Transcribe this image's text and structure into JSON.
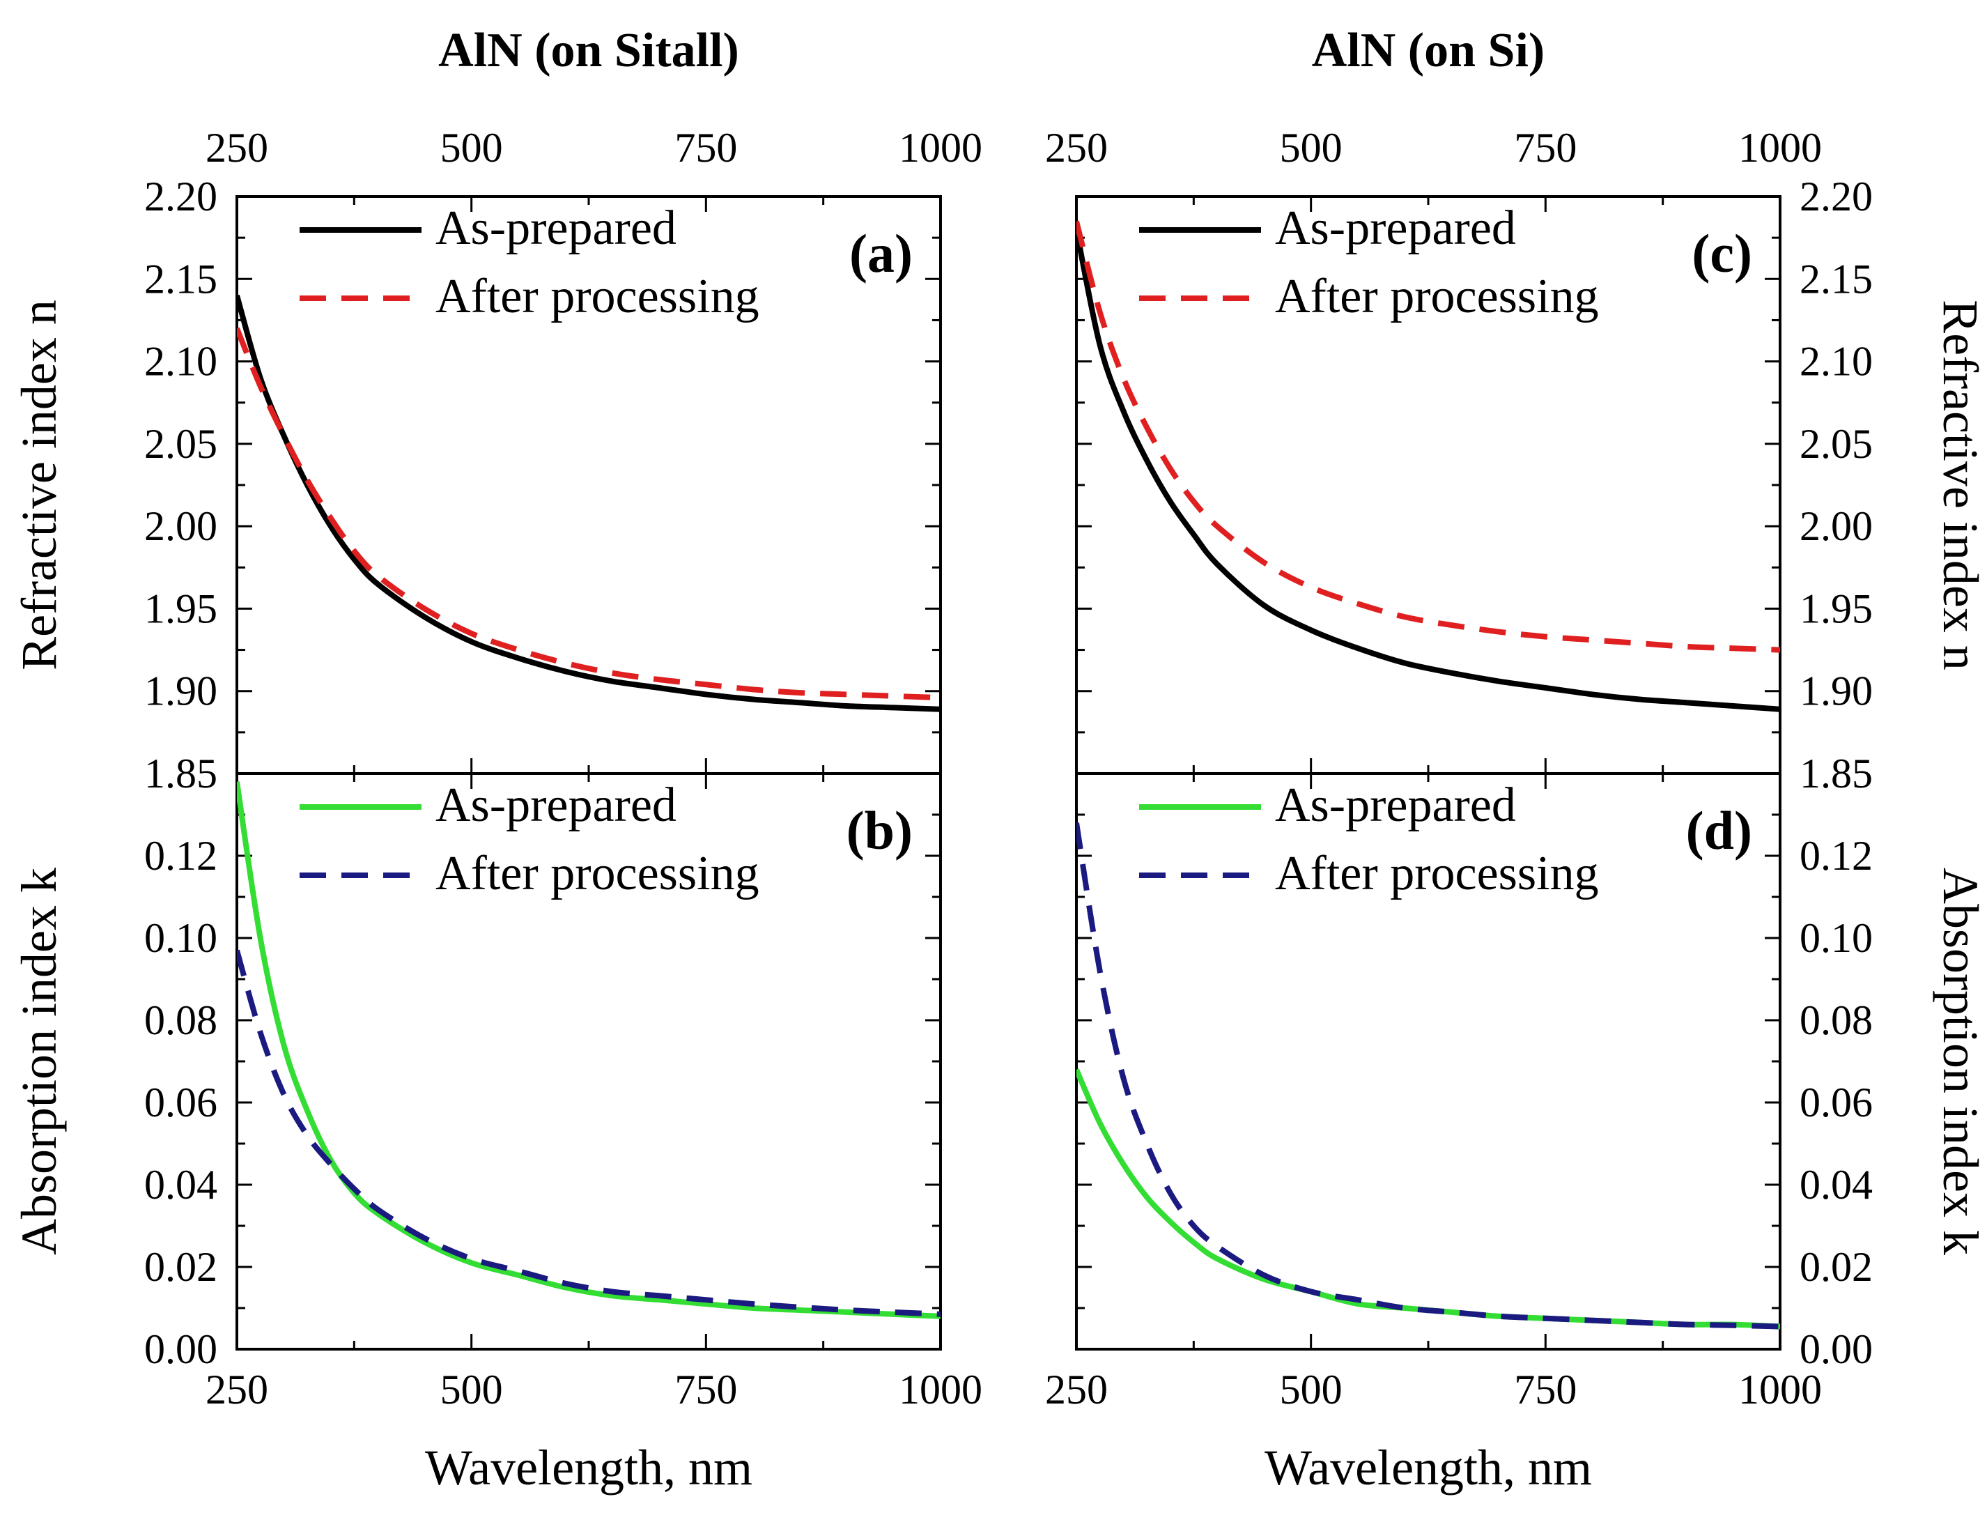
{
  "chart_data": [
    {
      "id": "a",
      "type": "line",
      "column_title": "AlN (on Sitall)",
      "panel_label": "(a)",
      "xlabel": "",
      "ylabel": "Refractive index n",
      "xlim": [
        250,
        1000
      ],
      "ylim": [
        1.85,
        2.2
      ],
      "xticks": [
        "250",
        "500",
        "750",
        "1000"
      ],
      "yticks": [
        "1.85",
        "1.90",
        "1.95",
        "2.00",
        "2.05",
        "2.10",
        "2.15",
        "2.20"
      ],
      "series": [
        {
          "name": "As-prepared",
          "color": "#000000",
          "dash": "solid",
          "x": [
            250,
            275,
            300,
            325,
            350,
            375,
            400,
            450,
            500,
            550,
            600,
            650,
            700,
            750,
            800,
            850,
            900,
            950,
            1000
          ],
          "y": [
            2.14,
            2.09,
            2.055,
            2.025,
            2.0,
            1.98,
            1.965,
            1.945,
            1.93,
            1.92,
            1.912,
            1.906,
            1.902,
            1.898,
            1.895,
            1.893,
            1.891,
            1.89,
            1.889
          ]
        },
        {
          "name": "After processing",
          "color": "#e02020",
          "dash": "dashed",
          "x": [
            250,
            275,
            300,
            325,
            350,
            375,
            400,
            450,
            500,
            550,
            600,
            650,
            700,
            750,
            800,
            850,
            900,
            950,
            1000
          ],
          "y": [
            2.12,
            2.085,
            2.055,
            2.028,
            2.005,
            1.985,
            1.97,
            1.95,
            1.935,
            1.925,
            1.917,
            1.911,
            1.907,
            1.904,
            1.901,
            1.899,
            1.898,
            1.897,
            1.896
          ]
        }
      ]
    },
    {
      "id": "b",
      "type": "line",
      "column_title": "",
      "panel_label": "(b)",
      "xlabel": "Wavelength, nm",
      "ylabel": "Absorption index k",
      "xlim": [
        250,
        1000
      ],
      "ylim": [
        0.0,
        0.14
      ],
      "xticks": [
        "250",
        "500",
        "750",
        "1000"
      ],
      "yticks": [
        "0.00",
        "0.02",
        "0.04",
        "0.06",
        "0.08",
        "0.10",
        "0.12"
      ],
      "series": [
        {
          "name": "As-prepared",
          "color": "#33dd33",
          "dash": "solid",
          "x": [
            250,
            275,
            300,
            325,
            350,
            375,
            400,
            450,
            500,
            550,
            600,
            650,
            700,
            750,
            800,
            850,
            900,
            950,
            1000
          ],
          "y": [
            0.138,
            0.1,
            0.074,
            0.058,
            0.046,
            0.038,
            0.033,
            0.026,
            0.021,
            0.018,
            0.015,
            0.013,
            0.012,
            0.011,
            0.01,
            0.0095,
            0.009,
            0.0085,
            0.008
          ]
        },
        {
          "name": "After processing",
          "color": "#1a1a80",
          "dash": "dashed",
          "x": [
            250,
            275,
            300,
            325,
            350,
            375,
            400,
            450,
            500,
            550,
            600,
            650,
            700,
            750,
            800,
            850,
            900,
            950,
            1000
          ],
          "y": [
            0.097,
            0.077,
            0.062,
            0.052,
            0.045,
            0.039,
            0.034,
            0.027,
            0.022,
            0.019,
            0.016,
            0.014,
            0.013,
            0.012,
            0.011,
            0.0102,
            0.0095,
            0.009,
            0.0085
          ]
        }
      ]
    },
    {
      "id": "c",
      "type": "line",
      "column_title": "AlN (on Si)",
      "panel_label": "(c)",
      "xlabel": "",
      "ylabel": "Refractive index n",
      "xlim": [
        250,
        1000
      ],
      "ylim": [
        1.85,
        2.2
      ],
      "xticks": [
        "250",
        "500",
        "750",
        "1000"
      ],
      "yticks": [
        "1.85",
        "1.90",
        "1.95",
        "2.00",
        "2.05",
        "2.10",
        "2.15",
        "2.20"
      ],
      "series": [
        {
          "name": "As-prepared",
          "color": "#000000",
          "dash": "solid",
          "x": [
            250,
            275,
            300,
            325,
            350,
            375,
            400,
            450,
            500,
            550,
            600,
            650,
            700,
            750,
            800,
            850,
            900,
            950,
            1000
          ],
          "y": [
            2.18,
            2.11,
            2.07,
            2.04,
            2.015,
            1.995,
            1.977,
            1.952,
            1.937,
            1.926,
            1.917,
            1.911,
            1.906,
            1.902,
            1.898,
            1.895,
            1.893,
            1.891,
            1.889
          ]
        },
        {
          "name": "After processing",
          "color": "#e02020",
          "dash": "dashed",
          "x": [
            250,
            275,
            300,
            325,
            350,
            375,
            400,
            450,
            500,
            550,
            600,
            650,
            700,
            750,
            800,
            850,
            900,
            950,
            1000
          ],
          "y": [
            2.185,
            2.13,
            2.09,
            2.06,
            2.035,
            2.015,
            2.0,
            1.978,
            1.963,
            1.953,
            1.945,
            1.94,
            1.936,
            1.933,
            1.931,
            1.929,
            1.927,
            1.926,
            1.925
          ]
        }
      ]
    },
    {
      "id": "d",
      "type": "line",
      "column_title": "",
      "panel_label": "(d)",
      "xlabel": "Wavelength, nm",
      "ylabel": "Absorption index k",
      "xlim": [
        250,
        1000
      ],
      "ylim": [
        0.0,
        0.14
      ],
      "xticks": [
        "250",
        "500",
        "750",
        "1000"
      ],
      "yticks": [
        "0.00",
        "0.02",
        "0.04",
        "0.06",
        "0.08",
        "0.10",
        "0.12"
      ],
      "series": [
        {
          "name": "As-prepared",
          "color": "#33dd33",
          "dash": "solid",
          "x": [
            250,
            275,
            300,
            325,
            350,
            375,
            400,
            450,
            500,
            550,
            600,
            650,
            700,
            750,
            800,
            850,
            900,
            950,
            1000
          ],
          "y": [
            0.068,
            0.055,
            0.045,
            0.037,
            0.031,
            0.026,
            0.022,
            0.017,
            0.014,
            0.011,
            0.01,
            0.009,
            0.008,
            0.0075,
            0.007,
            0.0065,
            0.006,
            0.006,
            0.0055
          ]
        },
        {
          "name": "After processing",
          "color": "#1a1a80",
          "dash": "dashed",
          "x": [
            250,
            275,
            300,
            325,
            350,
            375,
            400,
            450,
            500,
            550,
            600,
            650,
            700,
            750,
            800,
            850,
            900,
            950,
            1000
          ],
          "y": [
            0.128,
            0.092,
            0.066,
            0.05,
            0.038,
            0.03,
            0.025,
            0.018,
            0.014,
            0.012,
            0.01,
            0.009,
            0.008,
            0.0075,
            0.007,
            0.0065,
            0.006,
            0.0058,
            0.0055
          ]
        }
      ]
    }
  ]
}
